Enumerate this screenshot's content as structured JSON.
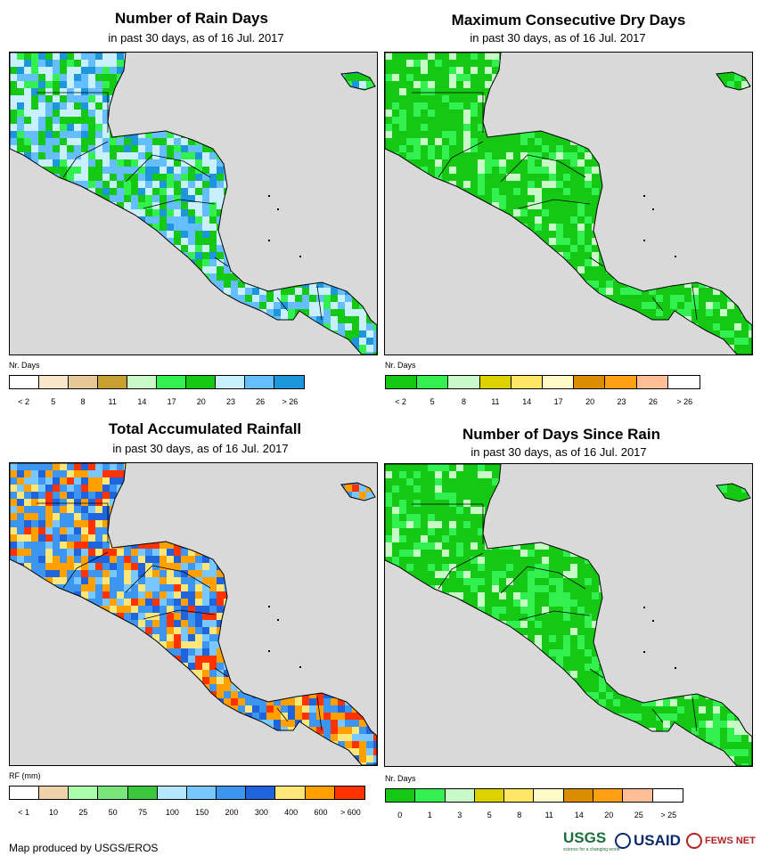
{
  "panels": [
    {
      "title": "Number of Rain Days",
      "subtitle": "in past 30 days, as of 16 Jul. 2017",
      "legend": {
        "title": "Nr. Days",
        "colors": [
          "#ffffff",
          "#fae6c8",
          "#e6c896",
          "#c8a032",
          "#c8fac8",
          "#32f050",
          "#14c814",
          "#c8f0ff",
          "#64beff",
          "#1e96dc"
        ],
        "labels": [
          "< 2",
          "5",
          "8",
          "11",
          "14",
          "17",
          "20",
          "23",
          "26",
          "> 26"
        ]
      },
      "land_colors": [
        "#1e96dc",
        "#64beff",
        "#c8f0ff",
        "#14c814",
        "#32f050",
        "#c8f0ff",
        "#64beff",
        "#14c814"
      ]
    },
    {
      "title": "Maximum Consecutive Dry Days",
      "subtitle": "in past 30 days, as of 16 Jul. 2017",
      "legend": {
        "title": "Nr. Days",
        "colors": [
          "#14c814",
          "#32f050",
          "#c8fac8",
          "#dcd200",
          "#ffe664",
          "#fffac8",
          "#dc8c00",
          "#ffa014",
          "#ffbe96",
          "#ffffff"
        ],
        "labels": [
          "< 2",
          "5",
          "8",
          "11",
          "14",
          "17",
          "20",
          "23",
          "26",
          "> 26"
        ]
      },
      "land_colors": [
        "#14c814",
        "#32f050",
        "#14c814",
        "#14c814",
        "#c8fac8",
        "#14c814",
        "#32f050",
        "#14c814"
      ]
    },
    {
      "title": "Total Accumulated Rainfall",
      "subtitle": "in past 30 days, as of 16 Jul. 2017",
      "legend": {
        "title": "RF (mm)",
        "colors": [
          "#ffffff",
          "#f0d2aa",
          "#aaffaa",
          "#78e678",
          "#3cc83c",
          "#b4e6ff",
          "#78c8ff",
          "#3c96f0",
          "#1e64dc",
          "#ffe678",
          "#ffa000",
          "#ff3200"
        ],
        "labels": [
          "< 1",
          "10",
          "25",
          "50",
          "75",
          "100",
          "150",
          "200",
          "300",
          "400",
          "600",
          "> 600"
        ]
      },
      "land_colors": [
        "#1e64dc",
        "#3c96f0",
        "#ffe678",
        "#78c8ff",
        "#ffa000",
        "#3c96f0",
        "#ff3200",
        "#ffa000"
      ]
    },
    {
      "title": "Number of Days Since Rain",
      "subtitle": "in past 30 days, as of 16 Jul. 2017",
      "legend": {
        "title": "Nr. Days",
        "colors": [
          "#14c814",
          "#32f050",
          "#c8fac8",
          "#dcd200",
          "#ffe664",
          "#fffac8",
          "#dc8c00",
          "#ffa014",
          "#ffbe96",
          "#ffffff"
        ],
        "labels": [
          "0",
          "1",
          "3",
          "5",
          "8",
          "11",
          "14",
          "20",
          "25",
          "> 25"
        ]
      },
      "land_colors": [
        "#14c814",
        "#32f050",
        "#14c814",
        "#14c814",
        "#c8fac8",
        "#14c814",
        "#14c814",
        "#32f050"
      ]
    }
  ],
  "footer": "Map produced by USGS/EROS",
  "logos": {
    "usgs": "USGS",
    "usgs_tagline": "science for a changing world",
    "usaid": "USAID",
    "fews": "FEWS NET"
  },
  "colors": {
    "ocean": "#d9d9d9",
    "border": "#000000"
  }
}
